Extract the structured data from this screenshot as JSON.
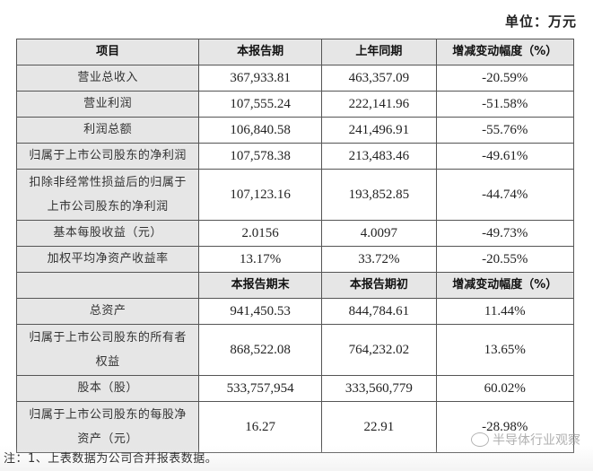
{
  "unit_label": "单位：万元",
  "table1": {
    "headers": [
      "项目",
      "本报告期",
      "上年同期",
      "增减变动幅度（%）"
    ],
    "rows": [
      {
        "item": "营业总收入",
        "current": "367,933.81",
        "prior": "463,357.09",
        "change": "-20.59%"
      },
      {
        "item": "营业利润",
        "current": "107,555.24",
        "prior": "222,141.96",
        "change": "-51.58%"
      },
      {
        "item": "利润总额",
        "current": "106,840.58",
        "prior": "241,496.91",
        "change": "-55.76%"
      },
      {
        "item": "归属于上市公司股东的净利润",
        "current": "107,578.38",
        "prior": "213,483.46",
        "change": "-49.61%"
      },
      {
        "item_line1": "扣除非经常性损益后的归属于",
        "item_line2": "上市公司股东的净利润",
        "current": "107,123.16",
        "prior": "193,852.85",
        "change": "-44.74%"
      },
      {
        "item": "基本每股收益（元）",
        "current": "2.0156",
        "prior": "4.0097",
        "change": "-49.73%"
      },
      {
        "item": "加权平均净资产收益率",
        "current": "13.17%",
        "prior": "33.72%",
        "change": "-20.55%"
      }
    ]
  },
  "table2": {
    "headers": [
      "",
      "本报告期末",
      "本报告期初",
      "增减变动幅度（%）"
    ],
    "rows": [
      {
        "item": "总资产",
        "current": "941,450.53",
        "prior": "844,784.61",
        "change": "11.44%"
      },
      {
        "item_line1": "归属于上市公司股东的所有者",
        "item_line2": "权益",
        "current": "868,522.08",
        "prior": "764,232.02",
        "change": "13.65%"
      },
      {
        "item": "股本（股）",
        "current": "533,757,954",
        "prior": "333,560,779",
        "change": "60.02%"
      },
      {
        "item_line1": "归属于上市公司股东的每股净",
        "item_line2": "资产（元）",
        "current": "16.27",
        "prior": "22.91",
        "change": "-28.98%"
      }
    ]
  },
  "footnote": "注：1、上表数据为公司合并报表数据。",
  "watermark": "半导体行业观察"
}
